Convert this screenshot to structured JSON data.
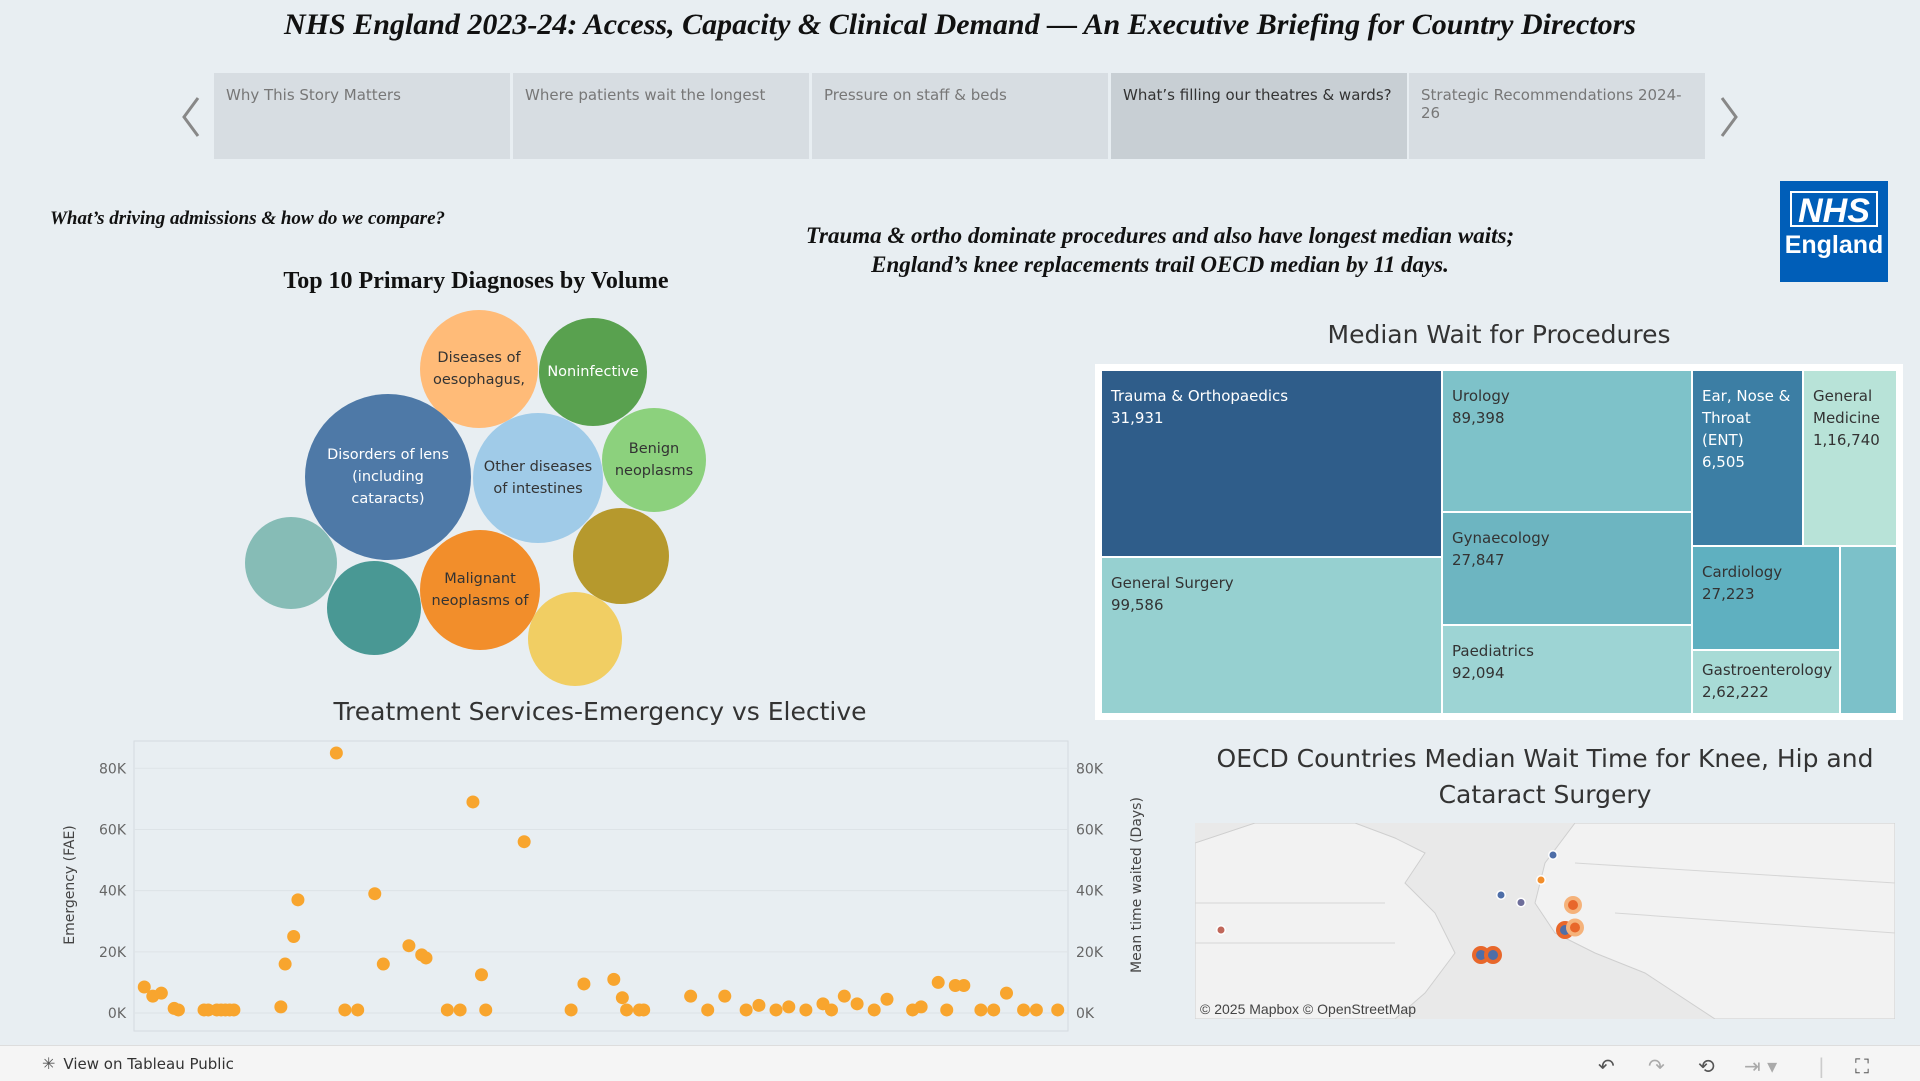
{
  "title": "NHS England 2023-24: Access, Capacity & Clinical Demand — An Executive Briefing for Country Directors",
  "nav": {
    "tabs": [
      {
        "label": "Why This Story Matters",
        "active": false
      },
      {
        "label": "Where patients wait the longest",
        "active": false
      },
      {
        "label": "Pressure on staff & beds",
        "active": false
      },
      {
        "label": "What’s filling our theatres & wards?",
        "active": true
      },
      {
        "label": "Strategic Recommendations 2024-26",
        "active": false
      }
    ],
    "prev_icon": "chevron-left-icon",
    "next_icon": "chevron-right-icon"
  },
  "section_subtitle": "What’s driving admissions & how do we compare?",
  "headline": {
    "line1": "Trauma & ortho dominate procedures and also have longest median waits;",
    "line2": "England’s knee replacements trail OECD median by 11 days."
  },
  "logo": {
    "nhs": "NHS",
    "england": "England",
    "color": "#005eb8"
  },
  "bubble_chart": {
    "title": "Top 10 Primary Diagnoses by Volume",
    "bubbles": [
      {
        "label": "Diseases of oesophagus,",
        "color": "#ffbb78",
        "text_color": "#333"
      },
      {
        "label": "Noninfective",
        "color": "#59a14f",
        "text_color": "#fff"
      },
      {
        "label": "Disorders of lens (including cataracts)",
        "color": "#4e79a7",
        "text_color": "#fff"
      },
      {
        "label": "Other diseases of intestines",
        "color": "#a0cbe8",
        "text_color": "#333"
      },
      {
        "label": "Benign neoplasms",
        "color": "#8cd17d",
        "text_color": "#333"
      },
      {
        "label": "",
        "color": "#b6992d",
        "text_color": "#333"
      },
      {
        "label": "",
        "color": "#86bcb6",
        "text_color": "#333"
      },
      {
        "label": "",
        "color": "#499894",
        "text_color": "#333"
      },
      {
        "label": "Malignant neoplasms of",
        "color": "#f28e2b",
        "text_color": "#333"
      },
      {
        "label": "",
        "color": "#f1ce63",
        "text_color": "#333"
      }
    ]
  },
  "treemap": {
    "title": "Median Wait for  Procedures",
    "cells": [
      {
        "name": "Trauma & Orthopaedics",
        "value": "31,931",
        "color": "#2f5d8a",
        "text_color": "#fff"
      },
      {
        "name": "General Surgery",
        "value": "99,586",
        "color": "#96d0d0",
        "text_color": "#333"
      },
      {
        "name": "Urology",
        "value": "89,398",
        "color": "#7ec2c9",
        "text_color": "#333"
      },
      {
        "name": "Gynaecology",
        "value": "27,847",
        "color": "#6db5c1",
        "text_color": "#333"
      },
      {
        "name": "Paediatrics",
        "value": "92,094",
        "color": "#9dd4d4",
        "text_color": "#333"
      },
      {
        "name": "Ear, Nose & Throat (ENT)",
        "value": "6,505",
        "color": "#3c7ea4",
        "text_color": "#fff"
      },
      {
        "name": "General Medicine",
        "value": "1,16,740",
        "color": "#b8e3d8",
        "text_color": "#333"
      },
      {
        "name": "Cardiology",
        "value": "27,223",
        "color": "#5fb0c0",
        "text_color": "#333"
      },
      {
        "name": "Gastroenterology",
        "value": "2,62,222",
        "color": "#a8dbd6",
        "text_color": "#333"
      },
      {
        "name": "",
        "value": "",
        "color": "#7cc1c9",
        "text_color": "#333"
      }
    ]
  },
  "chart_data": {
    "type": "scatter",
    "title": "Treatment Services-Emergency vs Elective",
    "ylabel": "Emergency (FAE)",
    "y2label": "Mean time waited (Days)",
    "ylim": [
      0,
      85000
    ],
    "ticks": [
      "0K",
      "20K",
      "40K",
      "60K",
      "80K"
    ],
    "tick_values": [
      0,
      20000,
      40000,
      60000,
      80000
    ],
    "grid": true,
    "color": "#f8a52e",
    "x": [
      1,
      3,
      5,
      8,
      9,
      15,
      16,
      18,
      19,
      20,
      21,
      22,
      33,
      34,
      36,
      37,
      46,
      48,
      51,
      55,
      57,
      63,
      66,
      67,
      72,
      75,
      78,
      80,
      81,
      90,
      101,
      104,
      111,
      113,
      114,
      117,
      118,
      129,
      133,
      137,
      142,
      145,
      149,
      152,
      156,
      160,
      162,
      165,
      168,
      172,
      175,
      181,
      183,
      187,
      189,
      191,
      193,
      197,
      200,
      203,
      207,
      210,
      215
    ],
    "y": [
      8500,
      5500,
      6500,
      1500,
      1000,
      1000,
      1000,
      1000,
      1000,
      1000,
      1000,
      1000,
      2000,
      16000,
      25000,
      37000,
      85000,
      1000,
      1000,
      39000,
      16000,
      22000,
      19000,
      18000,
      1000,
      1000,
      69000,
      12500,
      1000,
      56000,
      1000,
      9500,
      11000,
      5000,
      1000,
      1000,
      1000,
      5500,
      1000,
      5500,
      1000,
      2500,
      1000,
      2000,
      1000,
      3000,
      1000,
      5500,
      3000,
      1000,
      4500,
      1000,
      2000,
      10000,
      1000,
      9000,
      9000,
      1000,
      1000,
      6500,
      1000,
      1000,
      1000
    ],
    "xrange": [
      0,
      216
    ]
  },
  "map": {
    "title_line1": "OECD Countries Median Wait Time for Knee, Hip and",
    "title_line2": "Cataract Surgery",
    "attribution": "© 2025 Mapbox  © OpenStreetMap",
    "markers": [
      {
        "lon": -73,
        "lat": 45,
        "color": "#c0675a",
        "outline": "#fff"
      },
      {
        "lon": 10,
        "lat": 60,
        "color": "#4e6ea8",
        "outline": "#fff"
      },
      {
        "lon": 7,
        "lat": 55,
        "color": "#f28e2b",
        "outline": "#fff"
      },
      {
        "lon": -3,
        "lat": 52,
        "color": "#4e6ea8",
        "outline": "#fff"
      },
      {
        "lon": 2,
        "lat": 50.5,
        "color": "#6e6e9a",
        "outline": "#fff"
      },
      {
        "lon": 15,
        "lat": 50,
        "color": "#e8672b",
        "outline": "#f5b27a"
      },
      {
        "lon": 13,
        "lat": 45,
        "color": "#4e6ea8",
        "outline": "#e8672b"
      },
      {
        "lon": 15.5,
        "lat": 45.5,
        "color": "#e8672b",
        "outline": "#f5b27a"
      },
      {
        "lon": -8,
        "lat": 40,
        "color": "#4e6ea8",
        "outline": "#e8672b"
      },
      {
        "lon": -5,
        "lat": 40,
        "color": "#4e6ea8",
        "outline": "#e8672b"
      }
    ]
  },
  "toolbar": {
    "tableau_link": "View on Tableau Public",
    "icons": [
      "undo-icon",
      "redo-icon",
      "revert-icon",
      "pause-icon",
      "fullscreen-icon"
    ]
  }
}
